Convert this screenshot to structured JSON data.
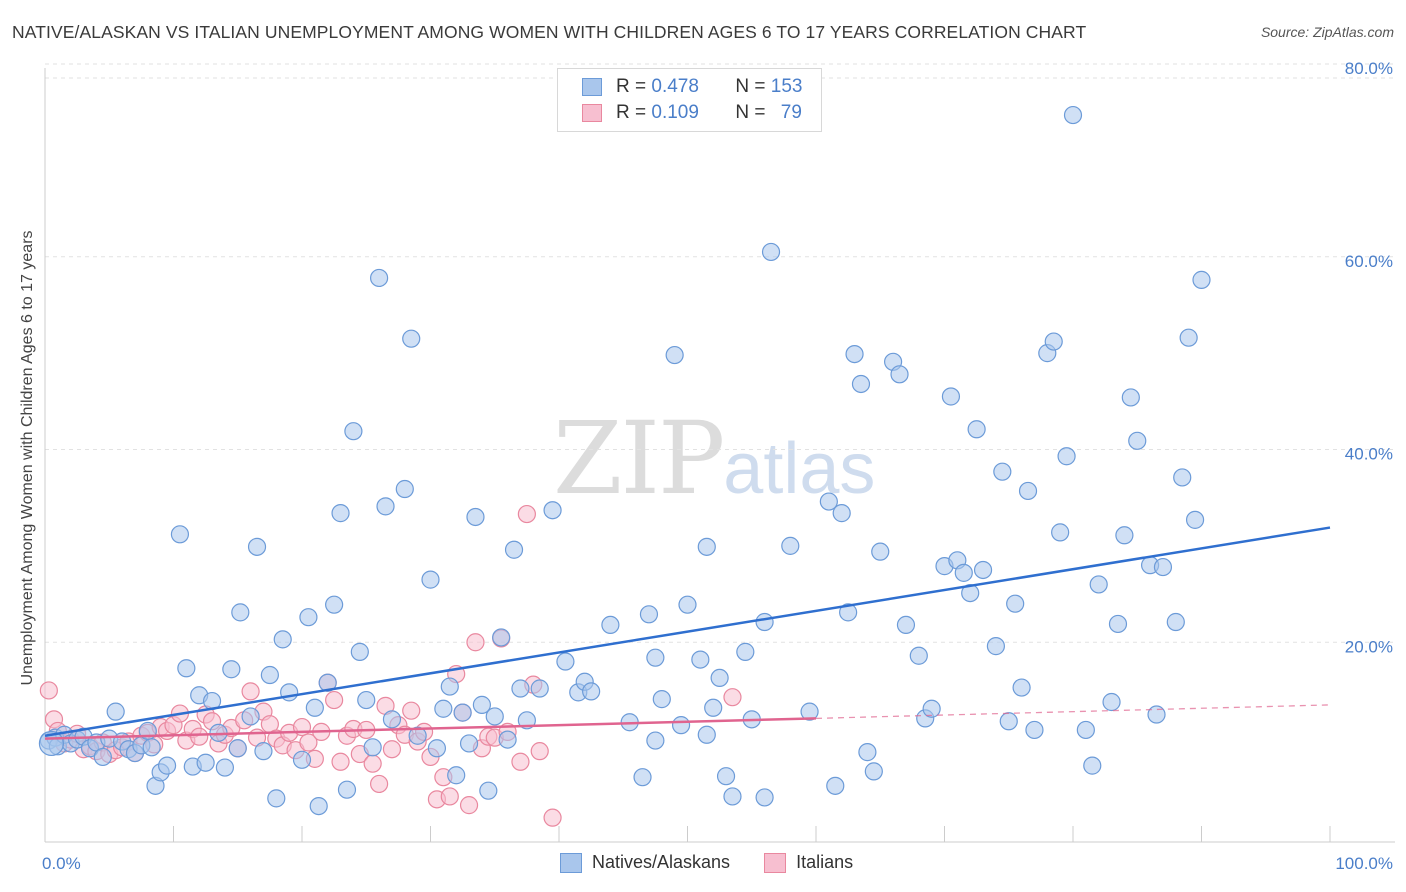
{
  "title": "NATIVE/ALASKAN VS ITALIAN UNEMPLOYMENT AMONG WOMEN WITH CHILDREN AGES 6 TO 17 YEARS CORRELATION CHART",
  "source": "Source: ZipAtlas.com",
  "watermark": {
    "zip": "ZIP",
    "atlas": "atlas"
  },
  "legend": {
    "rows": [
      {
        "r_label": "R = ",
        "r": "0.478",
        "n_label": "N = ",
        "n": "153"
      },
      {
        "r_label": "R = ",
        "r": "0.109",
        "n_label": "N = ",
        "n": "79"
      }
    ]
  },
  "bottom_legend": [
    "Natives/Alaskans",
    "Italians"
  ],
  "colors": {
    "blue_fill": "#a9c6ec",
    "blue_stroke": "#6c9bd8",
    "blue_line": "#2f6fcf",
    "pink_fill": "#f7bfd0",
    "pink_stroke": "#e9889f",
    "pink_line": "#e0648f",
    "tick_text": "#4a7ec9",
    "grid": "#e2e2e2"
  },
  "chart_data": {
    "type": "scatter",
    "title": "NATIVE/ALASKAN VS ITALIAN UNEMPLOYMENT AMONG WOMEN WITH CHILDREN AGES 6 TO 17 YEARS CORRELATION CHART",
    "xlabel": "",
    "ylabel": "Unemployment Among Women with Children Ages 6 to 17 years",
    "xlim": [
      0,
      100
    ],
    "ylim": [
      0,
      80
    ],
    "x_tick_labels": [
      "0.0%",
      "100.0%"
    ],
    "y_ticks": [
      20,
      40,
      60,
      80
    ],
    "y_tick_labels": [
      "20.0%",
      "40.0%",
      "60.0%",
      "80.0%"
    ],
    "grid": true,
    "legend_position": "top-center",
    "series": [
      {
        "name": "Natives/Alaskans",
        "trend": {
          "x": [
            0,
            100
          ],
          "y": [
            10.3,
            31.9
          ]
        },
        "points": [
          [
            0.3,
            9.8
          ],
          [
            0.8,
            10.1
          ],
          [
            1.0,
            9.2
          ],
          [
            1.5,
            10.4
          ],
          [
            2.0,
            9.5
          ],
          [
            2.5,
            9.9
          ],
          [
            3.0,
            10.2
          ],
          [
            3.5,
            9.0
          ],
          [
            4.0,
            9.6
          ],
          [
            4.5,
            8.1
          ],
          [
            5.0,
            10.0
          ],
          [
            5.5,
            12.8
          ],
          [
            6.0,
            9.7
          ],
          [
            6.5,
            8.9
          ],
          [
            7.0,
            8.5
          ],
          [
            7.5,
            9.3
          ],
          [
            8.0,
            10.8
          ],
          [
            8.3,
            9.1
          ],
          [
            8.6,
            5.1
          ],
          [
            9.0,
            6.5
          ],
          [
            9.5,
            7.2
          ],
          [
            10.5,
            31.2
          ],
          [
            11.0,
            17.3
          ],
          [
            11.5,
            7.1
          ],
          [
            12.0,
            14.5
          ],
          [
            12.5,
            7.5
          ],
          [
            13.0,
            13.9
          ],
          [
            13.5,
            10.6
          ],
          [
            14.0,
            7.0
          ],
          [
            14.5,
            17.2
          ],
          [
            15.0,
            9.0
          ],
          [
            15.2,
            23.1
          ],
          [
            16.0,
            12.3
          ],
          [
            16.5,
            29.9
          ],
          [
            17.0,
            8.7
          ],
          [
            17.5,
            16.6
          ],
          [
            18.0,
            3.8
          ],
          [
            18.5,
            20.3
          ],
          [
            19.0,
            14.8
          ],
          [
            20.0,
            7.8
          ],
          [
            20.5,
            22.6
          ],
          [
            21.0,
            13.2
          ],
          [
            21.3,
            3.0
          ],
          [
            22.0,
            15.8
          ],
          [
            22.5,
            23.9
          ],
          [
            23.0,
            33.4
          ],
          [
            23.5,
            4.7
          ],
          [
            24.0,
            41.9
          ],
          [
            24.5,
            19.0
          ],
          [
            25.0,
            14.0
          ],
          [
            25.5,
            9.1
          ],
          [
            26.0,
            57.8
          ],
          [
            26.5,
            34.1
          ],
          [
            27.0,
            12.0
          ],
          [
            28.0,
            35.9
          ],
          [
            28.5,
            51.5
          ],
          [
            29.0,
            10.3
          ],
          [
            30.0,
            26.5
          ],
          [
            30.5,
            9.0
          ],
          [
            31.0,
            13.1
          ],
          [
            31.5,
            15.4
          ],
          [
            32.0,
            6.2
          ],
          [
            32.5,
            12.7
          ],
          [
            33.0,
            9.5
          ],
          [
            33.5,
            33.0
          ],
          [
            34.0,
            13.5
          ],
          [
            34.5,
            4.6
          ],
          [
            35.0,
            12.3
          ],
          [
            35.5,
            20.5
          ],
          [
            36.0,
            9.9
          ],
          [
            36.5,
            29.6
          ],
          [
            37.0,
            15.2
          ],
          [
            37.5,
            11.9
          ],
          [
            38.5,
            15.2
          ],
          [
            39.5,
            33.7
          ],
          [
            40.5,
            18.0
          ],
          [
            41.5,
            14.8
          ],
          [
            42.0,
            15.9
          ],
          [
            42.5,
            14.9
          ],
          [
            44.0,
            21.8
          ],
          [
            45.5,
            11.7
          ],
          [
            47.0,
            22.9
          ],
          [
            46.5,
            6.0
          ],
          [
            47.5,
            9.8
          ],
          [
            47.5,
            18.4
          ],
          [
            48.0,
            14.1
          ],
          [
            49.0,
            49.8
          ],
          [
            49.5,
            11.4
          ],
          [
            50.0,
            23.9
          ],
          [
            51.0,
            18.2
          ],
          [
            51.5,
            29.9
          ],
          [
            51.5,
            10.4
          ],
          [
            52.0,
            13.2
          ],
          [
            52.5,
            16.3
          ],
          [
            53.0,
            6.1
          ],
          [
            53.5,
            4.0
          ],
          [
            54.5,
            19.0
          ],
          [
            55.0,
            12.0
          ],
          [
            56.0,
            22.1
          ],
          [
            56.5,
            60.5
          ],
          [
            56.0,
            3.9
          ],
          [
            58.0,
            30.0
          ],
          [
            59.5,
            12.8
          ],
          [
            61.0,
            34.6
          ],
          [
            61.5,
            5.1
          ],
          [
            62.0,
            33.4
          ],
          [
            62.5,
            23.1
          ],
          [
            63.0,
            49.9
          ],
          [
            63.5,
            46.8
          ],
          [
            64.0,
            8.6
          ],
          [
            64.5,
            6.6
          ],
          [
            65.0,
            29.4
          ],
          [
            66.0,
            49.1
          ],
          [
            66.5,
            47.8
          ],
          [
            67.0,
            21.8
          ],
          [
            68.0,
            18.6
          ],
          [
            68.5,
            12.1
          ],
          [
            69.0,
            13.1
          ],
          [
            70.0,
            27.9
          ],
          [
            70.5,
            45.5
          ],
          [
            71.0,
            28.5
          ],
          [
            71.5,
            27.2
          ],
          [
            72.0,
            25.1
          ],
          [
            72.5,
            42.1
          ],
          [
            73.0,
            27.5
          ],
          [
            74.0,
            19.6
          ],
          [
            74.5,
            37.7
          ],
          [
            75.0,
            11.8
          ],
          [
            75.5,
            24.0
          ],
          [
            76.0,
            15.3
          ],
          [
            76.5,
            35.7
          ],
          [
            77.0,
            10.9
          ],
          [
            78.0,
            50.0
          ],
          [
            78.5,
            51.2
          ],
          [
            79.0,
            31.4
          ],
          [
            79.5,
            39.3
          ],
          [
            80.0,
            74.7
          ],
          [
            81.0,
            10.9
          ],
          [
            81.5,
            7.2
          ],
          [
            82.0,
            26.0
          ],
          [
            83.0,
            13.8
          ],
          [
            83.5,
            21.9
          ],
          [
            84.0,
            31.1
          ],
          [
            84.5,
            45.4
          ],
          [
            85.0,
            40.9
          ],
          [
            86.0,
            28.0
          ],
          [
            86.5,
            12.5
          ],
          [
            87.0,
            27.8
          ],
          [
            88.0,
            22.1
          ],
          [
            88.5,
            37.1
          ],
          [
            89.0,
            51.6
          ],
          [
            89.5,
            32.7
          ],
          [
            90.0,
            57.6
          ]
        ]
      },
      {
        "name": "Italians",
        "trend": {
          "x": [
            0,
            60
          ],
          "y": [
            10.0,
            12.1
          ]
        },
        "trend_extension": {
          "x": [
            60,
            100
          ],
          "y": [
            12.1,
            13.5
          ]
        },
        "points": [
          [
            0.3,
            15.0
          ],
          [
            0.7,
            12.0
          ],
          [
            1.0,
            10.8
          ],
          [
            1.5,
            9.5
          ],
          [
            2.0,
            9.9
          ],
          [
            2.5,
            10.5
          ],
          [
            3.0,
            8.9
          ],
          [
            3.5,
            9.2
          ],
          [
            4.0,
            8.7
          ],
          [
            4.5,
            9.6
          ],
          [
            5.0,
            8.4
          ],
          [
            5.5,
            8.8
          ],
          [
            6.0,
            9.1
          ],
          [
            6.5,
            9.7
          ],
          [
            7.0,
            8.5
          ],
          [
            7.5,
            10.3
          ],
          [
            8.0,
            10.6
          ],
          [
            8.5,
            9.4
          ],
          [
            9.0,
            11.2
          ],
          [
            9.5,
            10.8
          ],
          [
            10.0,
            11.4
          ],
          [
            10.5,
            12.6
          ],
          [
            11.0,
            9.8
          ],
          [
            11.5,
            11.0
          ],
          [
            12.0,
            10.2
          ],
          [
            12.5,
            12.5
          ],
          [
            13.0,
            11.8
          ],
          [
            13.5,
            9.5
          ],
          [
            14.0,
            10.4
          ],
          [
            14.5,
            11.1
          ],
          [
            15.0,
            9.0
          ],
          [
            15.5,
            11.9
          ],
          [
            16.0,
            14.9
          ],
          [
            16.5,
            10.1
          ],
          [
            17.0,
            12.8
          ],
          [
            17.5,
            11.5
          ],
          [
            18.0,
            10.0
          ],
          [
            18.5,
            9.3
          ],
          [
            19.0,
            10.6
          ],
          [
            19.5,
            8.8
          ],
          [
            20.0,
            11.2
          ],
          [
            20.5,
            9.6
          ],
          [
            21.0,
            7.9
          ],
          [
            21.5,
            10.7
          ],
          [
            22.0,
            15.8
          ],
          [
            22.5,
            14.0
          ],
          [
            23.0,
            7.6
          ],
          [
            23.5,
            10.3
          ],
          [
            24.0,
            11.0
          ],
          [
            24.5,
            8.4
          ],
          [
            25.0,
            10.9
          ],
          [
            25.5,
            7.4
          ],
          [
            26.0,
            5.3
          ],
          [
            26.5,
            13.4
          ],
          [
            27.0,
            8.9
          ],
          [
            27.5,
            11.4
          ],
          [
            28.0,
            10.4
          ],
          [
            28.5,
            12.9
          ],
          [
            29.0,
            9.7
          ],
          [
            29.5,
            10.7
          ],
          [
            30.0,
            8.1
          ],
          [
            30.5,
            3.7
          ],
          [
            31.0,
            6.0
          ],
          [
            31.5,
            4.0
          ],
          [
            32.0,
            16.7
          ],
          [
            32.5,
            12.7
          ],
          [
            33.0,
            3.1
          ],
          [
            33.5,
            20.0
          ],
          [
            34.0,
            9.0
          ],
          [
            34.5,
            10.2
          ],
          [
            35.0,
            10.1
          ],
          [
            35.5,
            20.4
          ],
          [
            36.0,
            10.7
          ],
          [
            37.0,
            7.6
          ],
          [
            37.5,
            33.3
          ],
          [
            38.0,
            15.6
          ],
          [
            38.5,
            8.7
          ],
          [
            39.5,
            1.8
          ],
          [
            53.5,
            14.3
          ]
        ]
      }
    ]
  }
}
